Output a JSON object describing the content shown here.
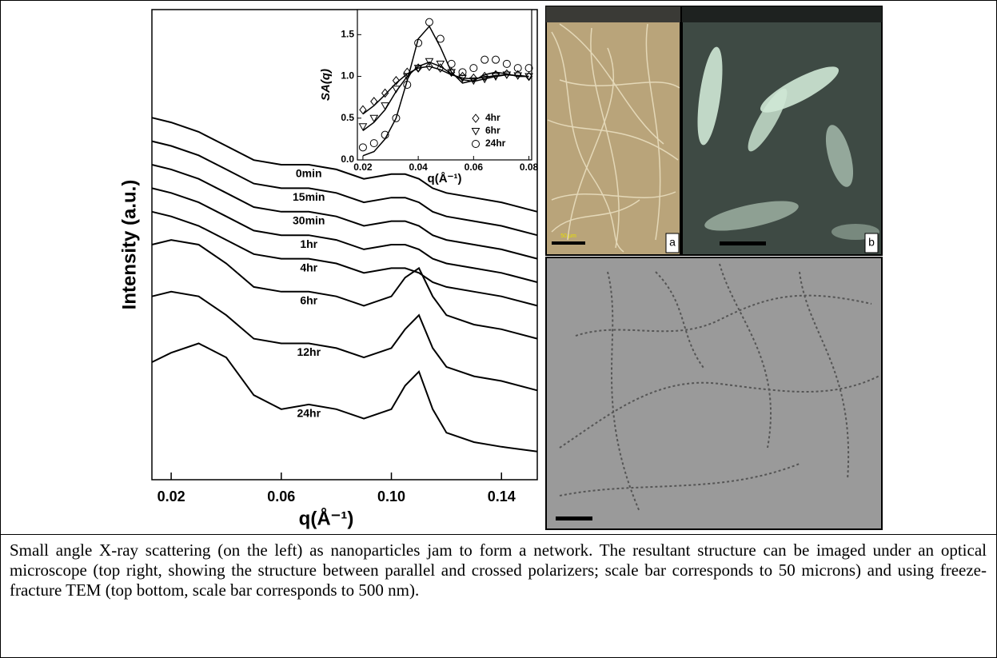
{
  "chart_data": [
    {
      "type": "line",
      "x_label": "q(Å⁻¹)",
      "y_label": "Intensity (a.u.)",
      "x": [
        0.013,
        0.02,
        0.03,
        0.04,
        0.05,
        0.06,
        0.07,
        0.08,
        0.09,
        0.1,
        0.105,
        0.11,
        0.115,
        0.12,
        0.13,
        0.14,
        0.153
      ],
      "xlim": [
        0.013,
        0.153
      ],
      "xticks": [
        0.02,
        0.06,
        {
          "value": 0.1,
          "label": "0.10"
        },
        0.14
      ],
      "ylim": [
        0,
        100
      ],
      "series": [
        {
          "name": "0min",
          "color": "#000000",
          "values": [
            77,
            76,
            74,
            71,
            68,
            67,
            67,
            66,
            64,
            65,
            65,
            64,
            62,
            61,
            60,
            59,
            57
          ]
        },
        {
          "name": "15min",
          "color": "#000000",
          "values": [
            72,
            71,
            69,
            66,
            63,
            62,
            62,
            61,
            59,
            60,
            60,
            59,
            57,
            56,
            55,
            54,
            52
          ]
        },
        {
          "name": "30min",
          "color": "#000000",
          "values": [
            67,
            66,
            64,
            61,
            58,
            57,
            57,
            56,
            54,
            55,
            55,
            54,
            52,
            51,
            50,
            49,
            47
          ]
        },
        {
          "name": "1hr",
          "color": "#000000",
          "values": [
            62,
            61,
            59,
            56,
            53,
            52,
            52,
            51,
            49,
            50,
            50,
            49,
            47,
            46,
            45,
            44,
            42
          ]
        },
        {
          "name": "4hr",
          "color": "#000000",
          "values": [
            57,
            56,
            54,
            51,
            48,
            47,
            47,
            46,
            44,
            45,
            45,
            44,
            42,
            41,
            40,
            39,
            37
          ]
        },
        {
          "name": "6hr",
          "color": "#000000",
          "values": [
            50,
            51,
            50,
            46,
            41,
            40,
            40,
            39,
            37,
            39,
            43,
            45,
            39,
            35,
            33,
            32,
            30
          ]
        },
        {
          "name": "12hr",
          "color": "#000000",
          "values": [
            39,
            40,
            39,
            35,
            30,
            29,
            29,
            28,
            26,
            28,
            32,
            35,
            28,
            24,
            22,
            21,
            19
          ]
        },
        {
          "name": "24hr",
          "color": "#000000",
          "values": [
            25,
            27,
            29,
            26,
            18,
            15,
            16,
            15,
            13,
            15,
            20,
            23,
            15,
            10,
            8,
            7,
            6
          ]
        }
      ]
    },
    {
      "type": "scatter",
      "x_label": "q(Å⁻¹)",
      "y_label": "SA(q)",
      "legend": "lower right",
      "x": [
        0.02,
        0.024,
        0.028,
        0.032,
        0.036,
        0.04,
        0.044,
        0.048,
        0.052,
        0.056,
        0.06,
        0.064,
        0.068,
        0.072,
        0.076,
        0.08
      ],
      "xlim": [
        0.018,
        0.081
      ],
      "xticks": [
        0.02,
        0.04,
        0.06,
        0.08
      ],
      "ylim": [
        0,
        1.8
      ],
      "yticks": [
        {
          "value": 0,
          "label": "0.0"
        },
        0.5,
        {
          "value": 1,
          "label": "1.0"
        },
        1.5
      ],
      "series": [
        {
          "name": "4hr",
          "marker": "diamond",
          "color": "#000000",
          "values": [
            0.6,
            0.7,
            0.8,
            0.95,
            1.05,
            1.1,
            1.12,
            1.1,
            1.05,
            1.0,
            0.98,
            1.0,
            1.02,
            1.03,
            1.02,
            1.0
          ]
        },
        {
          "name": "6hr",
          "marker": "triangle",
          "color": "#000000",
          "values": [
            0.4,
            0.5,
            0.65,
            0.85,
            1.0,
            1.1,
            1.18,
            1.15,
            1.05,
            0.98,
            0.95,
            0.97,
            1.0,
            1.02,
            1.01,
            1.0
          ]
        },
        {
          "name": "24hr",
          "marker": "circle",
          "color": "#000000",
          "values": [
            0.15,
            0.2,
            0.3,
            0.5,
            0.9,
            1.4,
            1.65,
            1.45,
            1.15,
            1.05,
            1.1,
            1.2,
            1.2,
            1.15,
            1.1,
            1.1
          ]
        },
        {
          "marker": "line",
          "color": "#000000",
          "values": [
            0.55,
            0.65,
            0.78,
            0.92,
            1.03,
            1.1,
            1.12,
            1.08,
            1.02,
            0.98,
            0.97,
            0.99,
            1.01,
            1.02,
            1.01,
            1.0
          ]
        },
        {
          "marker": "line",
          "color": "#000000",
          "values": [
            0.35,
            0.45,
            0.6,
            0.82,
            1.0,
            1.12,
            1.17,
            1.12,
            1.03,
            0.96,
            0.94,
            0.97,
            1.0,
            1.02,
            1.01,
            1.0
          ]
        },
        {
          "marker": "line",
          "color": "#000000",
          "values": [
            0.05,
            0.1,
            0.25,
            0.5,
            0.95,
            1.45,
            1.6,
            1.35,
            1.05,
            0.92,
            0.95,
            1.02,
            1.05,
            1.03,
            1.0,
            1.0
          ]
        }
      ]
    }
  ],
  "panels": [
    {
      "label": "a",
      "scale_text": "50 μm"
    },
    {
      "label": "b"
    }
  ],
  "caption": "Small angle X-ray scattering (on the left) as nanoparticles jam to form a network.  The resultant structure can be imaged under an optical microscope (top right, showing the structure between parallel and crossed polarizers; scale bar corresponds to 50 microns) and using freeze-fracture TEM (top bottom, scale bar corresponds to 500 nm)."
}
